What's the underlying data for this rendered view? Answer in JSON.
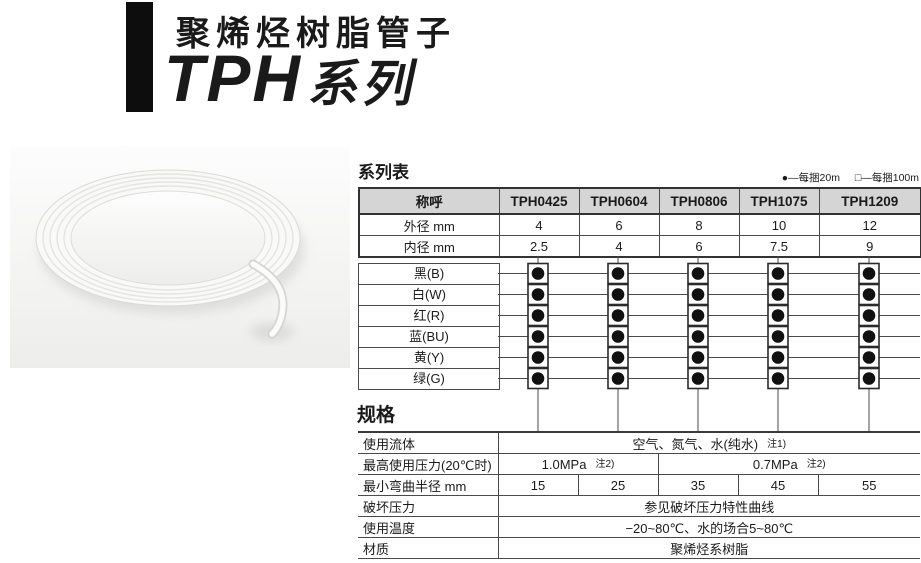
{
  "header": {
    "title_cn": "聚烯烃树脂管子",
    "series_code": "TPH",
    "series_suffix": "系列"
  },
  "series_table": {
    "heading": "系列表",
    "legend": [
      {
        "symbol": "●",
        "text": "—每捆20m"
      },
      {
        "symbol": "□",
        "text": "—每捆100m"
      }
    ],
    "header": {
      "designation": "称呼",
      "models": [
        "TPH0425",
        "TPH0604",
        "TPH0806",
        "TPH1075",
        "TPH1209"
      ]
    },
    "dimension_rows": [
      {
        "label": "外径 mm",
        "values": [
          "4",
          "6",
          "8",
          "10",
          "12"
        ]
      },
      {
        "label": "内径 mm",
        "values": [
          "2.5",
          "4",
          "6",
          "7.5",
          "9"
        ]
      }
    ],
    "colors": [
      {
        "label": "黑(B)",
        "availability": [
          "dot_in_square",
          "dot_in_square",
          "dot_in_square",
          "dot_in_square",
          "dot_in_square"
        ]
      },
      {
        "label": "白(W)",
        "availability": [
          "dot_in_square",
          "dot_in_square",
          "dot_in_square",
          "dot_in_square",
          "dot_in_square"
        ]
      },
      {
        "label": "红(R)",
        "availability": [
          "dot_in_square",
          "dot_in_square",
          "dot_in_square",
          "dot_in_square",
          "dot_in_square"
        ]
      },
      {
        "label": "蓝(BU)",
        "availability": [
          "dot_in_square",
          "dot_in_square",
          "dot_in_square",
          "dot_in_square",
          "dot_in_square"
        ]
      },
      {
        "label": "黄(Y)",
        "availability": [
          "dot_in_square",
          "dot_in_square",
          "dot_in_square",
          "dot_in_square",
          "dot_in_square"
        ]
      },
      {
        "label": "绿(G)",
        "availability": [
          "dot_in_square",
          "dot_in_square",
          "dot_in_square",
          "dot_in_square",
          "dot_in_square"
        ]
      }
    ]
  },
  "spec_table": {
    "heading": "规格",
    "rows": [
      {
        "label": "使用流体",
        "cells": [
          {
            "text": "空气、氮气、水(纯水)",
            "note": "注1)",
            "span": 5
          }
        ]
      },
      {
        "label": "最高使用压力(20℃时)",
        "cells": [
          {
            "text": "1.0MPa",
            "note": "注2)",
            "span": 2
          },
          {
            "text": "0.7MPa",
            "note": "注2)",
            "span": 3
          }
        ]
      },
      {
        "label": "最小弯曲半径 mm",
        "cells": [
          {
            "text": "15",
            "span": 1
          },
          {
            "text": "25",
            "span": 1
          },
          {
            "text": "35",
            "span": 1
          },
          {
            "text": "45",
            "span": 1
          },
          {
            "text": "55",
            "span": 1
          }
        ]
      },
      {
        "label": "破坏压力",
        "cells": [
          {
            "text": "参见破坏压力特性曲线",
            "span": 5
          }
        ]
      },
      {
        "label": "使用温度",
        "cells": [
          {
            "text": "−20~80℃、水的场合5~80℃",
            "span": 5
          }
        ]
      },
      {
        "label": "材质",
        "cells": [
          {
            "text": "聚烯烃系树脂",
            "span": 5
          }
        ]
      }
    ]
  },
  "colors_theme": {
    "line": "#4a4a4a",
    "table_border": "#333333",
    "header_bg": "#d5d5d5",
    "symbol_fill": "#111111"
  }
}
